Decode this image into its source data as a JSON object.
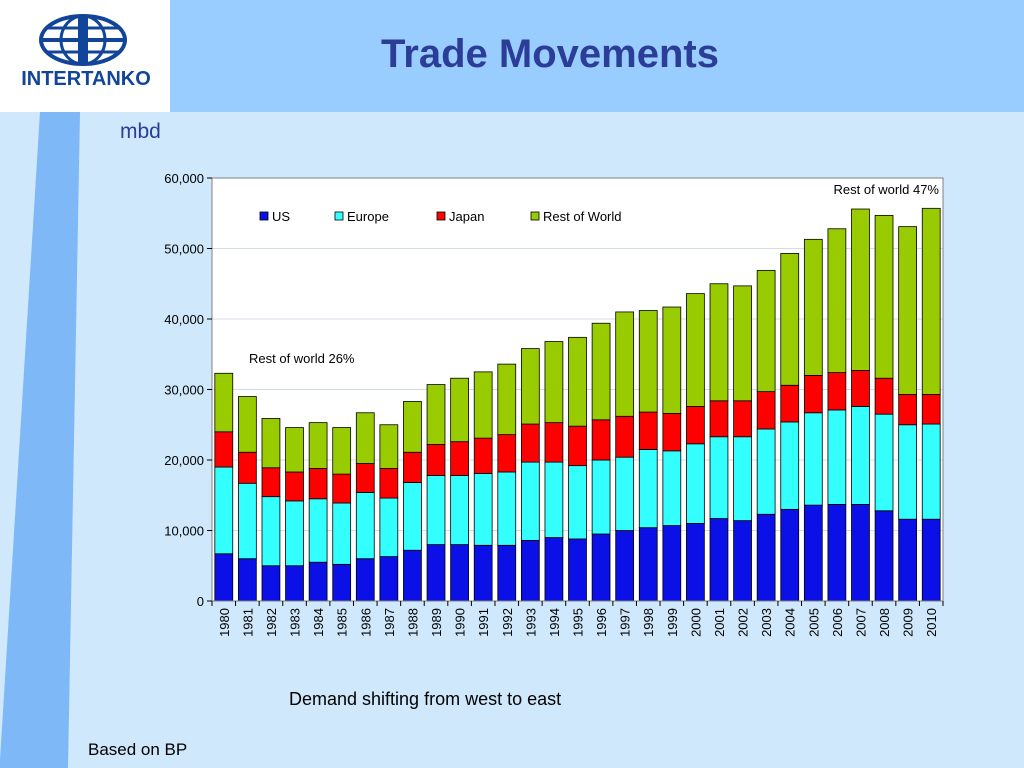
{
  "slide": {
    "title": "Trade Movements",
    "logo_text": "INTERTANKO",
    "unit_label": "mbd",
    "caption": "Demand shifting from west to east",
    "source": "Based on BP"
  },
  "colors": {
    "header_bg": "#99ccff",
    "content_bg": "#cfe8fb",
    "left_band": "#7fb8f6",
    "title": "#2b3d97",
    "logo": "#12459a"
  },
  "chart_data": {
    "type": "bar",
    "stacked": true,
    "title": "",
    "xlabel": "",
    "ylabel": "",
    "ylim": [
      0,
      60000
    ],
    "yticks": [
      "0",
      "10,000",
      "20,000",
      "30,000",
      "40,000",
      "50,000",
      "60,000"
    ],
    "categories": [
      "1980",
      "1981",
      "1982",
      "1983",
      "1984",
      "1985",
      "1986",
      "1987",
      "1988",
      "1989",
      "1990",
      "1991",
      "1992",
      "1993",
      "1994",
      "1995",
      "1996",
      "1997",
      "1998",
      "1999",
      "2000",
      "2001",
      "2002",
      "2003",
      "2004",
      "2005",
      "2006",
      "2007",
      "2008",
      "2009",
      "2010"
    ],
    "legend": "top-left",
    "series": [
      {
        "name": "US",
        "color": "#0a10e6",
        "values": [
          6700,
          6000,
          5000,
          5000,
          5500,
          5200,
          6000,
          6300,
          7200,
          8000,
          8000,
          7900,
          7900,
          8600,
          9000,
          8800,
          9500,
          10000,
          10400,
          10700,
          11000,
          11700,
          11400,
          12300,
          13000,
          13600,
          13700,
          13700,
          12800,
          11600,
          11600
        ]
      },
      {
        "name": "Europe",
        "color": "#33ffff",
        "values": [
          12300,
          10700,
          9800,
          9200,
          9000,
          8700,
          9400,
          8300,
          9600,
          9800,
          9800,
          10200,
          10400,
          11100,
          10700,
          10400,
          10500,
          10400,
          11100,
          10600,
          11300,
          11600,
          11900,
          12100,
          12400,
          13100,
          13400,
          13900,
          13700,
          13400,
          13500
        ]
      },
      {
        "name": "Japan",
        "color": "#ff0000",
        "values": [
          5000,
          4400,
          4100,
          4100,
          4300,
          4100,
          4100,
          4200,
          4300,
          4400,
          4800,
          5000,
          5300,
          5400,
          5600,
          5600,
          5700,
          5800,
          5300,
          5300,
          5300,
          5100,
          5100,
          5300,
          5200,
          5300,
          5300,
          5100,
          5100,
          4300,
          4200
        ]
      },
      {
        "name": "Rest of World",
        "color": "#99cc00",
        "values": [
          8300,
          7900,
          7000,
          6300,
          6500,
          6600,
          7200,
          6200,
          7200,
          8500,
          9000,
          9400,
          10000,
          10700,
          11500,
          12600,
          13700,
          14800,
          14400,
          15100,
          16000,
          16600,
          16300,
          17200,
          18700,
          19300,
          20400,
          22900,
          23100,
          23800,
          26400
        ]
      }
    ],
    "annotations": [
      {
        "text": "Rest of world 26%",
        "anchor_category": "1981"
      },
      {
        "text": "Rest of world 47%",
        "anchor_category": "2010"
      }
    ]
  }
}
